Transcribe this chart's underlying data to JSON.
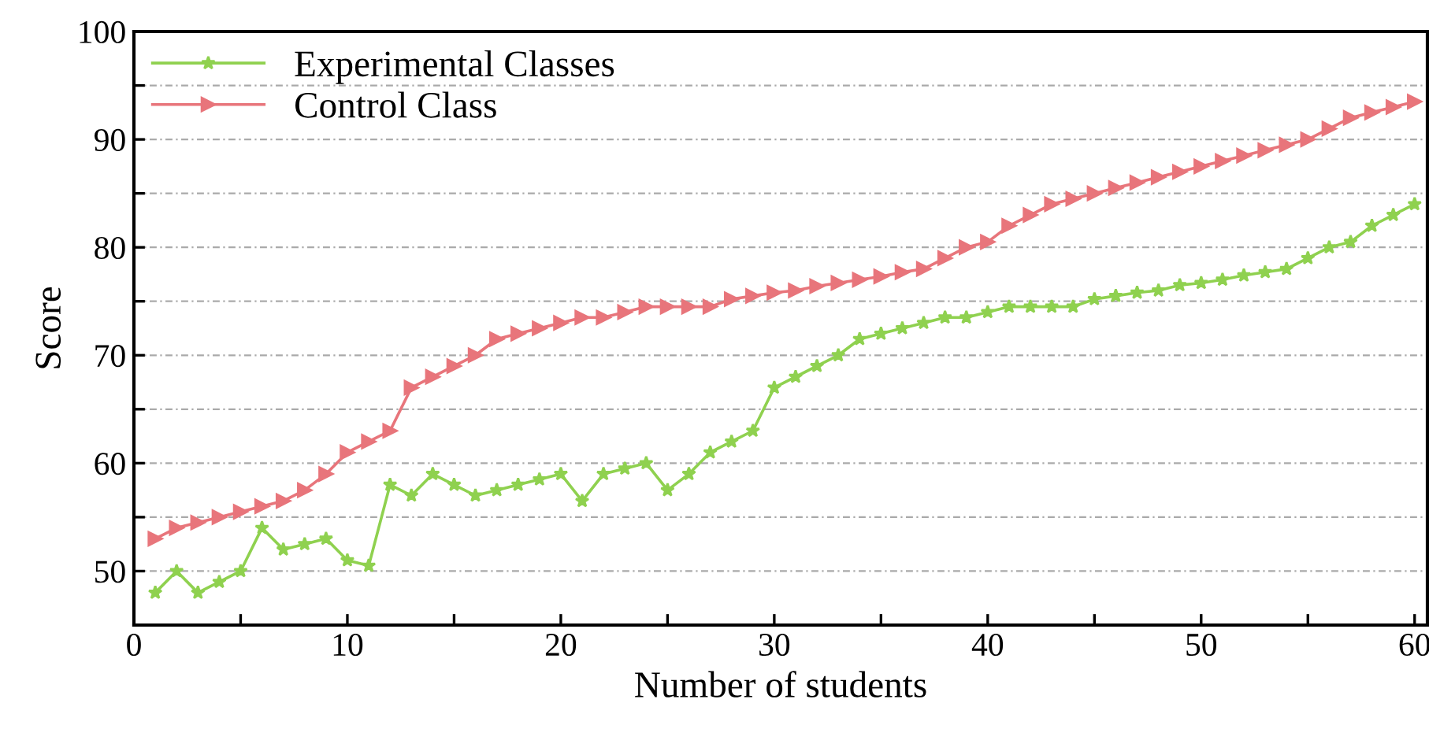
{
  "chart_data": {
    "type": "line",
    "xlabel": "Number of students",
    "ylabel": "Score",
    "x": [
      1,
      2,
      3,
      4,
      5,
      6,
      7,
      8,
      9,
      10,
      11,
      12,
      13,
      14,
      15,
      16,
      17,
      18,
      19,
      20,
      21,
      22,
      23,
      24,
      25,
      26,
      27,
      28,
      29,
      30,
      31,
      32,
      33,
      34,
      35,
      36,
      37,
      38,
      39,
      40,
      41,
      42,
      43,
      44,
      45,
      46,
      47,
      48,
      49,
      50,
      51,
      52,
      53,
      54,
      55,
      56,
      57,
      58,
      59,
      60
    ],
    "series": [
      {
        "name": "Experimental Classes",
        "color": "#8fd14f",
        "marker": "star",
        "values": [
          48,
          50,
          48,
          49,
          50,
          54,
          52,
          52.5,
          53,
          51,
          50.5,
          58,
          57,
          59,
          58,
          57,
          57.5,
          58,
          58.5,
          59,
          56.5,
          59,
          59.5,
          60,
          57.5,
          59,
          61,
          62,
          63,
          67,
          68,
          69,
          70,
          71.5,
          72,
          72.5,
          73,
          73.5,
          73.5,
          74,
          74.5,
          74.5,
          74.5,
          74.5,
          75.2,
          75.5,
          75.8,
          76,
          76.5,
          76.7,
          77,
          77.4,
          77.7,
          78,
          79,
          80,
          80.5,
          82,
          83,
          84
        ]
      },
      {
        "name": "Control Class",
        "color": "#e8757b",
        "marker": "triangle",
        "values": [
          53,
          54,
          54.5,
          55,
          55.5,
          56,
          56.5,
          57.5,
          59,
          61,
          62,
          63,
          67,
          68,
          69,
          70,
          71.5,
          72,
          72.5,
          73,
          73.5,
          73.5,
          74,
          74.5,
          74.5,
          74.5,
          74.5,
          75.2,
          75.5,
          75.8,
          76,
          76.4,
          76.7,
          77,
          77.3,
          77.7,
          78,
          79,
          80,
          80.5,
          82,
          83,
          84,
          84.5,
          85,
          85.5,
          86,
          86.5,
          87,
          87.5,
          88,
          88.5,
          89,
          89.5,
          90,
          91,
          92,
          92.5,
          93,
          93.5
        ]
      }
    ],
    "xlim": [
      0,
      60.6
    ],
    "xticks": [
      0,
      {
        "value": 5,
        "label": null
      },
      10,
      {
        "value": 15,
        "label": null
      },
      20,
      {
        "value": 25,
        "label": null
      },
      30,
      {
        "value": 35,
        "label": null
      },
      40,
      {
        "value": 45,
        "label": null
      },
      50,
      {
        "value": 55,
        "label": null
      },
      60
    ],
    "ylim": [
      45,
      100
    ],
    "yticks": [
      50,
      {
        "value": 55,
        "label": null
      },
      60,
      {
        "value": 65,
        "label": null
      },
      70,
      {
        "value": 75,
        "label": null
      },
      80,
      {
        "value": 85,
        "label": null
      },
      90,
      {
        "value": 95,
        "label": null
      },
      100
    ],
    "grid": "y",
    "legend": "top left",
    "line_style": "solid"
  }
}
